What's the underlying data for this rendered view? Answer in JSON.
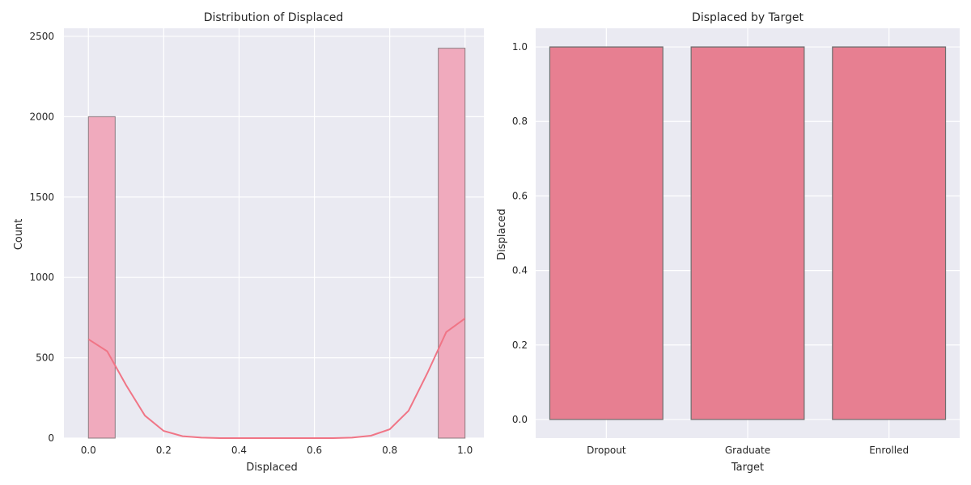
{
  "chart_data": [
    {
      "type": "histogram",
      "title": "Distribution of Displaced",
      "xlabel": "Displaced",
      "ylabel": "Count",
      "xlim": [
        -0.065,
        1.05
      ],
      "ylim": [
        0,
        2550
      ],
      "xticks": [
        "0.0",
        "0.2",
        "0.4",
        "0.6",
        "0.8",
        "1.0"
      ],
      "yticks": [
        "0",
        "500",
        "1000",
        "1500",
        "2000",
        "2500"
      ],
      "grid": true,
      "bars": [
        {
          "x0": 0.0,
          "x1": 0.071,
          "count": 2000
        },
        {
          "x0": 0.929,
          "x1": 1.0,
          "count": 2426
        }
      ],
      "kde": {
        "x": [
          0.0,
          0.05,
          0.1,
          0.15,
          0.2,
          0.25,
          0.3,
          0.35,
          0.4,
          0.45,
          0.5,
          0.55,
          0.6,
          0.65,
          0.7,
          0.75,
          0.8,
          0.85,
          0.9,
          0.95,
          1.0
        ],
        "y": [
          615,
          540,
          330,
          140,
          45,
          12,
          3,
          0,
          0,
          0,
          0,
          0,
          0,
          0,
          3,
          15,
          55,
          170,
          405,
          660,
          745
        ]
      },
      "colors": {
        "bar_fill": "#f0aabd",
        "bar_edge": "#8a7b80",
        "kde_line": "#f07586"
      }
    },
    {
      "type": "box",
      "title": "Displaced by Target",
      "xlabel": "Target",
      "ylabel": "Displaced",
      "categories": [
        "Dropout",
        "Graduate",
        "Enrolled"
      ],
      "ylim": [
        -0.05,
        1.05
      ],
      "yticks": [
        "0.0",
        "0.2",
        "0.4",
        "0.6",
        "0.8",
        "1.0"
      ],
      "grid": true,
      "boxes": [
        {
          "q1": 0,
          "median": 1,
          "q3": 1
        },
        {
          "q1": 0,
          "median": 1,
          "q3": 1
        },
        {
          "q1": 0,
          "median": 1,
          "q3": 1
        }
      ],
      "colors": {
        "box_fill": "#e77f91",
        "box_edge": "#6e6e6e"
      }
    }
  ]
}
